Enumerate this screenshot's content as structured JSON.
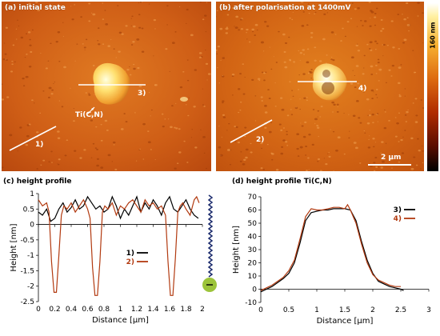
{
  "panels": {
    "a": {
      "label": "(a) initial state",
      "line_label": "1)",
      "particle_line_label": "3)",
      "particle_label": "Ti(C,N)"
    },
    "b": {
      "label": "(b) after polarisation at 1400mV",
      "line_label": "2)",
      "particle_line_label": "4)",
      "scalebar_label": "2 µm"
    },
    "colorbar_label": "160 nm",
    "c_title": "(c) height profile",
    "d_title": "(d) height profile Ti(C,N)"
  },
  "colors": {
    "afm_base": "#d2641a",
    "line1": "#000000",
    "line2": "#b23a10",
    "electrode": "#9cc43a",
    "electrode_wire": "#1a2a6c"
  },
  "chart_data": [
    {
      "type": "line",
      "title": "(c) height profile",
      "xlabel": "Distance [µm]",
      "ylabel": "Height [nm]",
      "xlim": [
        0,
        2
      ],
      "ylim": [
        -2.5,
        1
      ],
      "xticks": [
        "0",
        "0.2",
        "0.4",
        "0.6",
        "0.8",
        "1",
        "1.2",
        "1.4",
        "1.6",
        "1.8",
        "2"
      ],
      "yticks": [
        "-2.5",
        "-2",
        "-1.5",
        "-1",
        "-0.5",
        "0",
        "0.5",
        "1"
      ],
      "legend": "center",
      "series": [
        {
          "name": "1)",
          "color": "#000000",
          "x": [
            0,
            0.05,
            0.1,
            0.15,
            0.2,
            0.25,
            0.3,
            0.35,
            0.4,
            0.45,
            0.5,
            0.55,
            0.6,
            0.65,
            0.7,
            0.75,
            0.8,
            0.85,
            0.9,
            0.95,
            1.0,
            1.05,
            1.1,
            1.15,
            1.2,
            1.25,
            1.3,
            1.35,
            1.4,
            1.45,
            1.5,
            1.55,
            1.6,
            1.65,
            1.7,
            1.75,
            1.8,
            1.85,
            1.9,
            1.95
          ],
          "y": [
            0.4,
            0.3,
            0.5,
            0.1,
            0.2,
            0.5,
            0.7,
            0.4,
            0.55,
            0.8,
            0.5,
            0.6,
            0.9,
            0.7,
            0.5,
            0.6,
            0.4,
            0.5,
            0.9,
            0.6,
            0.2,
            0.5,
            0.3,
            0.6,
            0.9,
            0.4,
            0.7,
            0.5,
            0.8,
            0.6,
            0.3,
            0.7,
            0.9,
            0.5,
            0.4,
            0.6,
            0.8,
            0.5,
            0.3,
            0.2
          ]
        },
        {
          "name": "2)",
          "color": "#b23a10",
          "x": [
            0,
            0.05,
            0.1,
            0.13,
            0.16,
            0.19,
            0.22,
            0.25,
            0.28,
            0.31,
            0.35,
            0.4,
            0.45,
            0.5,
            0.55,
            0.6,
            0.63,
            0.66,
            0.69,
            0.72,
            0.75,
            0.78,
            0.81,
            0.85,
            0.9,
            0.95,
            1.0,
            1.05,
            1.1,
            1.15,
            1.2,
            1.25,
            1.3,
            1.35,
            1.4,
            1.45,
            1.5,
            1.55,
            1.58,
            1.61,
            1.64,
            1.67,
            1.7,
            1.73,
            1.76,
            1.8,
            1.85,
            1.9,
            1.93,
            1.96
          ],
          "y": [
            0.8,
            0.6,
            0.7,
            0.4,
            -1.2,
            -2.2,
            -2.2,
            -1.0,
            0.3,
            0.6,
            0.5,
            0.7,
            0.4,
            0.6,
            0.8,
            0.5,
            0.2,
            -1.4,
            -2.3,
            -2.3,
            -1.2,
            0.4,
            0.6,
            0.5,
            0.7,
            0.3,
            0.6,
            0.5,
            0.7,
            0.8,
            0.6,
            0.4,
            0.8,
            0.6,
            0.7,
            0.5,
            0.6,
            0.3,
            -1.2,
            -2.3,
            -2.3,
            -1.1,
            0.4,
            0.6,
            0.7,
            0.5,
            0.3,
            0.8,
            0.9,
            0.7
          ]
        }
      ]
    },
    {
      "type": "line",
      "title": "(d) height profile Ti(C,N)",
      "xlabel": "Distance [µm]",
      "ylabel": "Height [nm]",
      "xlim": [
        0,
        3
      ],
      "ylim": [
        -10,
        70
      ],
      "xticks": [
        "0",
        "0.5",
        "1",
        "1.5",
        "2",
        "2.5",
        "3"
      ],
      "yticks": [
        "-10",
        "0",
        "10",
        "20",
        "30",
        "40",
        "50",
        "60",
        "70"
      ],
      "legend": "top-right",
      "series": [
        {
          "name": "3)",
          "color": "#000000",
          "x": [
            0,
            0.1,
            0.2,
            0.3,
            0.4,
            0.5,
            0.6,
            0.7,
            0.8,
            0.9,
            1.0,
            1.1,
            1.2,
            1.3,
            1.4,
            1.5,
            1.6,
            1.7,
            1.8,
            1.9,
            2.0,
            2.1,
            2.2,
            2.3,
            2.4,
            2.5,
            2.55
          ],
          "y": [
            -2,
            0,
            2,
            5,
            8,
            12,
            20,
            35,
            52,
            58,
            59,
            60,
            60,
            61,
            61,
            61,
            60,
            52,
            36,
            22,
            12,
            6,
            4,
            2,
            1,
            0,
            -1
          ]
        },
        {
          "name": "4)",
          "color": "#b23a10",
          "x": [
            0,
            0.1,
            0.2,
            0.3,
            0.4,
            0.5,
            0.6,
            0.7,
            0.8,
            0.9,
            1.0,
            1.1,
            1.2,
            1.3,
            1.4,
            1.5,
            1.55,
            1.6,
            1.7,
            1.8,
            1.9,
            2.0,
            2.1,
            2.2,
            2.3,
            2.4,
            2.5
          ],
          "y": [
            -1,
            1,
            3,
            6,
            9,
            14,
            22,
            38,
            55,
            61,
            60,
            60,
            61,
            62,
            62,
            61,
            64,
            60,
            50,
            34,
            20,
            11,
            7,
            5,
            3,
            2,
            2
          ]
        }
      ]
    }
  ]
}
